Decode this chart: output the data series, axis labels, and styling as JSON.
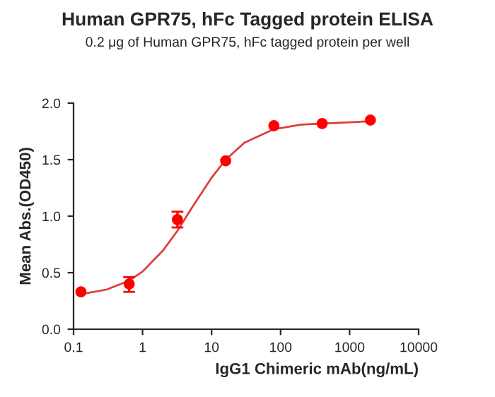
{
  "chart_data": {
    "type": "scatter",
    "title": "Human GPR75, hFc Tagged protein ELISA",
    "subtitle": "0.2 μg of Human GPR75, hFc tagged protein per well",
    "xlabel": "IgG1 Chimeric mAb(ng/mL)",
    "ylabel": "Mean Abs.(OD450)",
    "log": "x",
    "xlim": [
      0.1,
      10000
    ],
    "xticks": [
      0.1,
      1,
      10,
      100,
      1000,
      10000
    ],
    "ylim": [
      0,
      2
    ],
    "yticks": [
      {
        "value": 0,
        "label": "0.0"
      },
      {
        "value": 0.5,
        "label": "0.5"
      },
      {
        "value": 1,
        "label": "1.0"
      },
      {
        "value": 1.5,
        "label": "1.5"
      },
      {
        "value": 2,
        "label": "2.0"
      }
    ],
    "grid": false,
    "series": [
      {
        "color": "#ff0000",
        "marker": "circle",
        "x": [
          0.128,
          0.64,
          3.2,
          16,
          80,
          400,
          2000
        ],
        "values": [
          0.33,
          0.4,
          0.97,
          1.49,
          1.8,
          1.82,
          1.85
        ],
        "errors": [
          null,
          [
            0.33,
            0.46
          ],
          [
            0.9,
            1.04
          ],
          null,
          null,
          null,
          null
        ]
      },
      {
        "type": "line",
        "color": "#e03c3c",
        "marker": "none",
        "line_style": "solid",
        "x": [
          0.128,
          0.3,
          0.64,
          1,
          2,
          3.2,
          5,
          10,
          16,
          30,
          80,
          200,
          2000
        ],
        "values": [
          0.31,
          0.35,
          0.43,
          0.51,
          0.7,
          0.87,
          1.06,
          1.34,
          1.5,
          1.65,
          1.77,
          1.81,
          1.84
        ]
      }
    ]
  }
}
